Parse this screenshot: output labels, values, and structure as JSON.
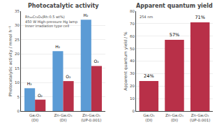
{
  "chart_data": [
    {
      "type": "bar",
      "title": "Photocatalytic activity",
      "annotation": "Rh₂₂Cr₂O₃(Rh:0.5 wt%)\n450 W High-pressure Hg lamp\nInner irradiation type cell",
      "ylabel": "Photocatalytic activity / mmol h⁻¹",
      "categories": [
        "Ga₂O₃\n(DI)",
        "Zn-Ga₂O₃\n(DI)",
        "Zn-Ga₂O₃\n(UP-0.001)"
      ],
      "series": [
        {
          "name": "H₂",
          "color": "#5b9bd5",
          "values": [
            8.0,
            21.0,
            32.0
          ]
        },
        {
          "name": "O₂",
          "color": "#b83048",
          "values": [
            4.0,
            10.5,
            15.8
          ]
        }
      ],
      "ylim": [
        0,
        35
      ],
      "yticks": [
        0,
        5,
        10,
        15,
        20,
        25,
        30,
        35
      ],
      "grid": true
    },
    {
      "type": "bar",
      "title": "Apparent quantum yield",
      "annotation": "254 nm",
      "ylabel": "Apparent quantum yield / %",
      "categories": [
        "Ga₂O₃\n(DI)",
        "Zn-Ga₂O₃\n(DI)",
        "Zn-Ga₂O₃\n(UP-0.001)"
      ],
      "values": [
        24,
        57,
        71
      ],
      "value_labels": [
        "24%",
        "57%",
        "71%"
      ],
      "data_labels": true,
      "color": "#b83048",
      "ylim": [
        0,
        80
      ],
      "yticks": [
        0,
        10,
        20,
        30,
        40,
        50,
        60,
        70,
        80
      ],
      "grid": true
    }
  ]
}
